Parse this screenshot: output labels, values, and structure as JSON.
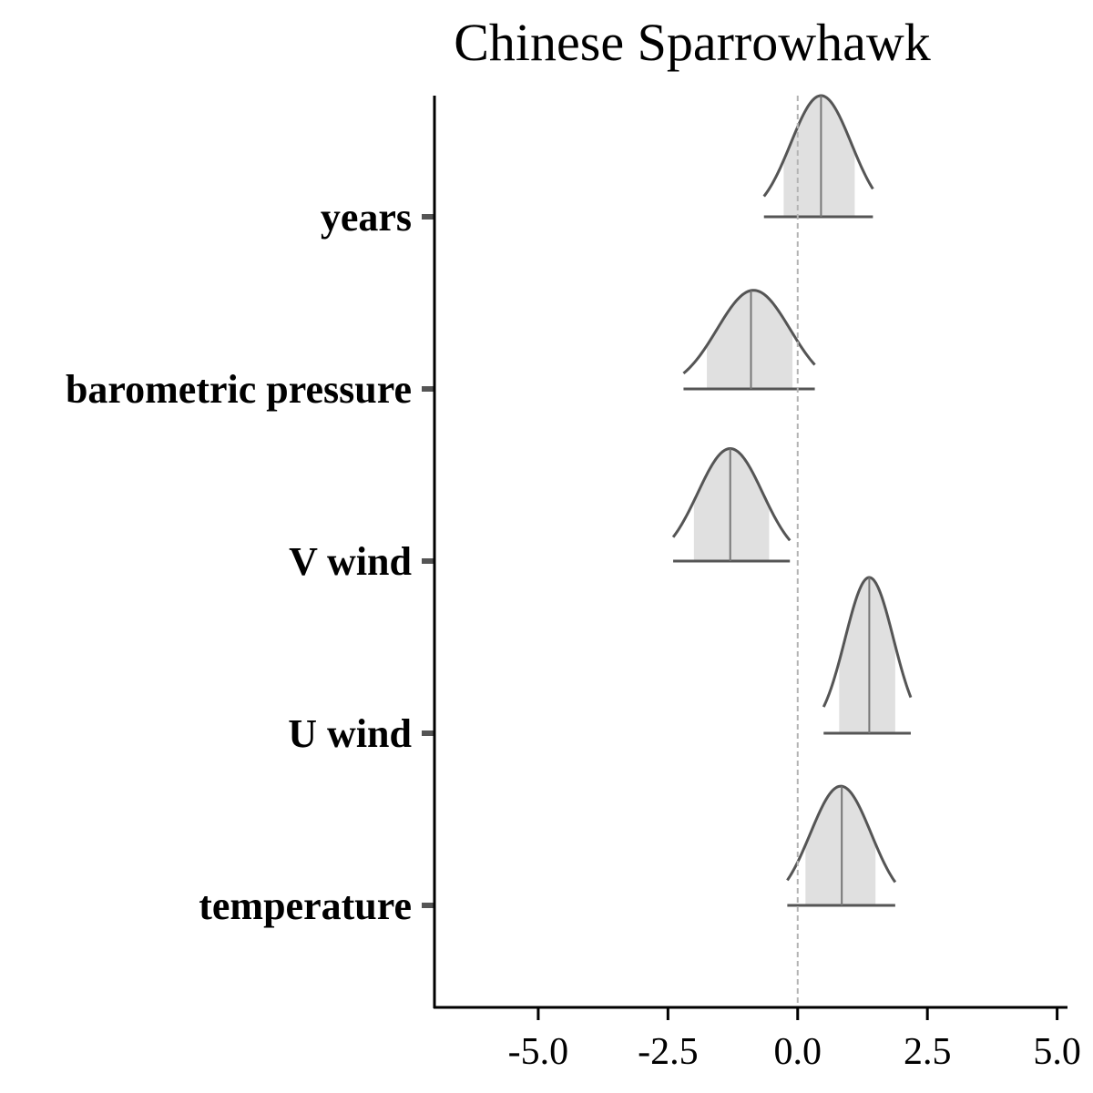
{
  "chart_data": {
    "type": "ridgeline",
    "title": "Chinese Sparrowhawk",
    "xlabel": "",
    "ylabel": "",
    "xlim": [
      -7.0,
      5.2
    ],
    "x_ticks": [
      -5.0,
      -2.5,
      0.0,
      2.5,
      5.0
    ],
    "x_tick_labels": [
      "-5.0",
      "-2.5",
      "0.0",
      "2.5",
      "5.0"
    ],
    "reference_line": {
      "x": 0.0,
      "style": "dashed",
      "color": "#b3b3b3"
    },
    "categories": [
      "years",
      "barometric pressure",
      "V wind",
      "U wind",
      "temperature"
    ],
    "series": [
      {
        "name": "years",
        "median": 0.45,
        "inner": [
          -0.27,
          1.1
        ],
        "outer": [
          -0.65,
          1.45
        ],
        "peak": 0.45,
        "height": 0.7,
        "skew": 0.0
      },
      {
        "name": "barometric pressure",
        "median": -0.9,
        "inner": [
          -1.75,
          -0.1
        ],
        "outer": [
          -2.2,
          0.33
        ],
        "peak": -0.85,
        "height": 0.57,
        "skew": 0.0
      },
      {
        "name": "V wind",
        "median": -1.3,
        "inner": [
          -2.0,
          -0.55
        ],
        "outer": [
          -2.4,
          -0.15
        ],
        "peak": -1.3,
        "height": 0.65,
        "skew": 0.0
      },
      {
        "name": "U wind",
        "median": 1.38,
        "inner": [
          0.8,
          1.88
        ],
        "outer": [
          0.5,
          2.18
        ],
        "peak": 1.38,
        "height": 0.9,
        "skew": 0.0
      },
      {
        "name": "temperature",
        "median": 0.85,
        "inner": [
          0.15,
          1.5
        ],
        "outer": [
          -0.2,
          1.88
        ],
        "peak": 0.8,
        "height": 0.7,
        "skew": 0.25
      }
    ],
    "colors": {
      "fill": "#e0e0e0",
      "line": "#555555",
      "axis": "#000000"
    },
    "grid": false,
    "legend": "none"
  }
}
